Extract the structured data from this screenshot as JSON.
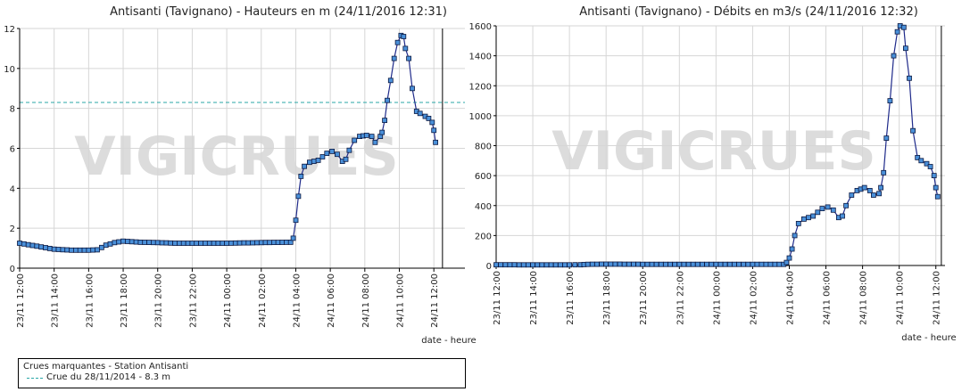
{
  "colors": {
    "line": "#1f2a8a",
    "marker_fill": "#4a90d9",
    "marker_stroke": "#0c1840",
    "grid": "#d6d6d6",
    "threshold": "#2aa7a7",
    "watermark": "#d9d9d9"
  },
  "watermark": "VIGICRUES",
  "legend": {
    "title": "Crues marquantes - Station Antisanti",
    "entries": [
      {
        "label": "Crue du 28/11/2014 - 8.3 m"
      }
    ]
  },
  "chart_data": [
    {
      "type": "line",
      "title": "Antisanti (Tavignano) - Hauteurs en m (24/11/2016 12:31)",
      "xlabel": "date - heure",
      "ylabel": "",
      "ylim": [
        0,
        12
      ],
      "yticks": [
        "0",
        "2",
        "4",
        "6",
        "8",
        "10",
        "12"
      ],
      "x_range_hours": [
        12,
        37.8
      ],
      "xticks": [
        {
          "h": 12,
          "label": "23/11 12:00"
        },
        {
          "h": 14,
          "label": "23/11 14:00"
        },
        {
          "h": 16,
          "label": "23/11 16:00"
        },
        {
          "h": 18,
          "label": "23/11 18:00"
        },
        {
          "h": 20,
          "label": "23/11 20:00"
        },
        {
          "h": 22,
          "label": "23/11 22:00"
        },
        {
          "h": 24,
          "label": "24/11 00:00"
        },
        {
          "h": 26,
          "label": "24/11 02:00"
        },
        {
          "h": 28,
          "label": "24/11 04:00"
        },
        {
          "h": 30,
          "label": "24/11 06:00"
        },
        {
          "h": 32,
          "label": "24/11 08:00"
        },
        {
          "h": 34,
          "label": "24/11 10:00"
        },
        {
          "h": 36,
          "label": "24/11 12:00"
        }
      ],
      "grid": true,
      "threshold": 8.3,
      "now_line_hour": 36.5,
      "keypoints": [
        [
          12,
          1.25
        ],
        [
          13,
          1.1
        ],
        [
          14,
          0.95
        ],
        [
          15,
          0.9
        ],
        [
          16,
          0.9
        ],
        [
          16.5,
          0.92
        ],
        [
          17,
          1.15
        ],
        [
          17.5,
          1.28
        ],
        [
          18,
          1.35
        ],
        [
          19,
          1.3
        ],
        [
          20,
          1.28
        ],
        [
          21,
          1.25
        ],
        [
          22,
          1.25
        ],
        [
          24,
          1.25
        ],
        [
          26,
          1.28
        ],
        [
          27.7,
          1.3
        ],
        [
          27.85,
          1.5
        ],
        [
          28,
          2.4
        ],
        [
          28.15,
          3.6
        ],
        [
          28.3,
          4.6
        ],
        [
          28.5,
          5.1
        ],
        [
          28.8,
          5.3
        ],
        [
          29.3,
          5.4
        ],
        [
          29.8,
          5.75
        ],
        [
          30.1,
          5.85
        ],
        [
          30.4,
          5.7
        ],
        [
          30.7,
          5.35
        ],
        [
          30.9,
          5.45
        ],
        [
          31.1,
          5.9
        ],
        [
          31.4,
          6.4
        ],
        [
          31.7,
          6.6
        ],
        [
          32.1,
          6.65
        ],
        [
          32.4,
          6.6
        ],
        [
          32.6,
          6.3
        ],
        [
          32.9,
          6.6
        ],
        [
          33.0,
          6.8
        ],
        [
          33.15,
          7.4
        ],
        [
          33.3,
          8.4
        ],
        [
          33.5,
          9.4
        ],
        [
          33.7,
          10.5
        ],
        [
          33.9,
          11.3
        ],
        [
          34.1,
          11.65
        ],
        [
          34.25,
          11.6
        ],
        [
          34.35,
          11.0
        ],
        [
          34.55,
          10.5
        ],
        [
          34.75,
          9.0
        ],
        [
          35.0,
          7.85
        ],
        [
          35.2,
          7.75
        ],
        [
          35.5,
          7.6
        ],
        [
          35.7,
          7.5
        ],
        [
          35.9,
          7.3
        ],
        [
          36.0,
          6.9
        ],
        [
          36.1,
          6.3
        ]
      ]
    },
    {
      "type": "line",
      "title": "Antisanti (Tavignano) - Débits en m3/s (24/11/2016 12:32)",
      "xlabel": "date - heure",
      "ylabel": "",
      "ylim": [
        0,
        1600
      ],
      "yticks": [
        "0",
        "200",
        "400",
        "600",
        "800",
        "1000",
        "1200",
        "1400",
        "1600"
      ],
      "x_range_hours": [
        12,
        36.5
      ],
      "xticks": [
        {
          "h": 12,
          "label": "23/11 12:00"
        },
        {
          "h": 14,
          "label": "23/11 14:00"
        },
        {
          "h": 16,
          "label": "23/11 16:00"
        },
        {
          "h": 18,
          "label": "23/11 18:00"
        },
        {
          "h": 20,
          "label": "23/11 20:00"
        },
        {
          "h": 22,
          "label": "23/11 22:00"
        },
        {
          "h": 24,
          "label": "24/11 00:00"
        },
        {
          "h": 26,
          "label": "24/11 02:00"
        },
        {
          "h": 28,
          "label": "24/11 04:00"
        },
        {
          "h": 30,
          "label": "24/11 06:00"
        },
        {
          "h": 32,
          "label": "24/11 08:00"
        },
        {
          "h": 34,
          "label": "24/11 10:00"
        },
        {
          "h": 36,
          "label": "24/11 12:00"
        }
      ],
      "grid": true,
      "now_line_hour": 36.3,
      "keypoints": [
        [
          12,
          5
        ],
        [
          14,
          4
        ],
        [
          16,
          4
        ],
        [
          16.6,
          5
        ],
        [
          17,
          8
        ],
        [
          18,
          9
        ],
        [
          20,
          8
        ],
        [
          22,
          8
        ],
        [
          24,
          8
        ],
        [
          26,
          8
        ],
        [
          27.7,
          8
        ],
        [
          27.85,
          20
        ],
        [
          28,
          50
        ],
        [
          28.15,
          110
        ],
        [
          28.3,
          200
        ],
        [
          28.5,
          280
        ],
        [
          28.8,
          310
        ],
        [
          29.3,
          330
        ],
        [
          29.8,
          380
        ],
        [
          30.1,
          390
        ],
        [
          30.4,
          370
        ],
        [
          30.7,
          320
        ],
        [
          30.9,
          330
        ],
        [
          31.1,
          400
        ],
        [
          31.4,
          470
        ],
        [
          31.7,
          500
        ],
        [
          32.1,
          520
        ],
        [
          32.4,
          500
        ],
        [
          32.6,
          470
        ],
        [
          32.9,
          480
        ],
        [
          33.0,
          520
        ],
        [
          33.15,
          620
        ],
        [
          33.3,
          850
        ],
        [
          33.5,
          1100
        ],
        [
          33.7,
          1400
        ],
        [
          33.9,
          1560
        ],
        [
          34.05,
          1600
        ],
        [
          34.25,
          1590
        ],
        [
          34.35,
          1450
        ],
        [
          34.55,
          1250
        ],
        [
          34.75,
          900
        ],
        [
          35.0,
          720
        ],
        [
          35.2,
          700
        ],
        [
          35.5,
          680
        ],
        [
          35.7,
          660
        ],
        [
          35.9,
          600
        ],
        [
          36.0,
          520
        ],
        [
          36.1,
          460
        ]
      ]
    }
  ]
}
